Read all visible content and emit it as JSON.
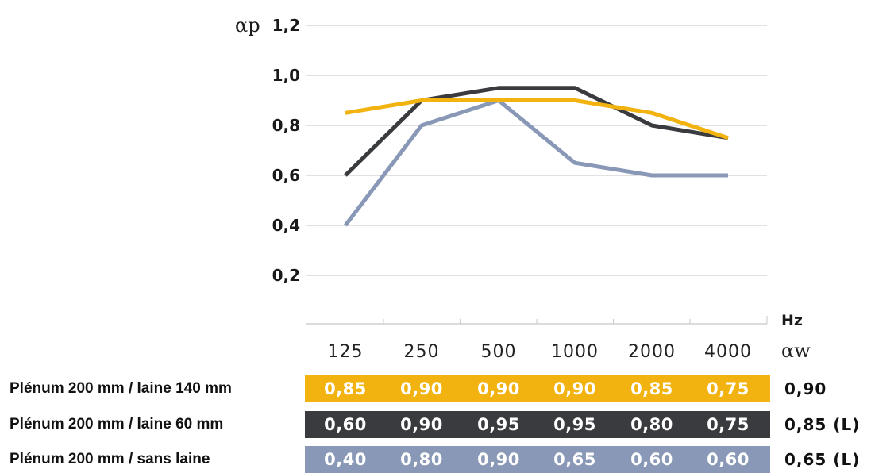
{
  "chart_data": {
    "type": "line",
    "ylabel": "αp",
    "xlabel": "Hz",
    "aw_label": "αw",
    "ylim": [
      0,
      1.2
    ],
    "yticks": [
      "0,2",
      "0,4",
      "0,6",
      "0,8",
      "1,0",
      "1,2"
    ],
    "categories": [
      "125",
      "250",
      "500",
      "1000",
      "2000",
      "4000"
    ],
    "grid": true,
    "series": [
      {
        "name": "Plénum 200 mm / laine 140 mm",
        "color": "#f2b20f",
        "values": [
          0.85,
          0.9,
          0.9,
          0.9,
          0.85,
          0.75
        ],
        "labels": [
          "0,85",
          "0,90",
          "0,90",
          "0,90",
          "0,85",
          "0,75"
        ],
        "aw": "0,90"
      },
      {
        "name": "Plénum 200 mm / laine 60 mm",
        "color": "#3a3b3e",
        "values": [
          0.6,
          0.9,
          0.95,
          0.95,
          0.8,
          0.75
        ],
        "labels": [
          "0,60",
          "0,90",
          "0,95",
          "0,95",
          "0,80",
          "0,75"
        ],
        "aw": "0,85 (L)"
      },
      {
        "name": "Plénum 200 mm / sans laine",
        "color": "#8898b6",
        "values": [
          0.4,
          0.8,
          0.9,
          0.65,
          0.6,
          0.6
        ],
        "labels": [
          "0,40",
          "0,80",
          "0,90",
          "0,65",
          "0,60",
          "0,60"
        ],
        "aw": "0,65 (L)"
      }
    ]
  }
}
